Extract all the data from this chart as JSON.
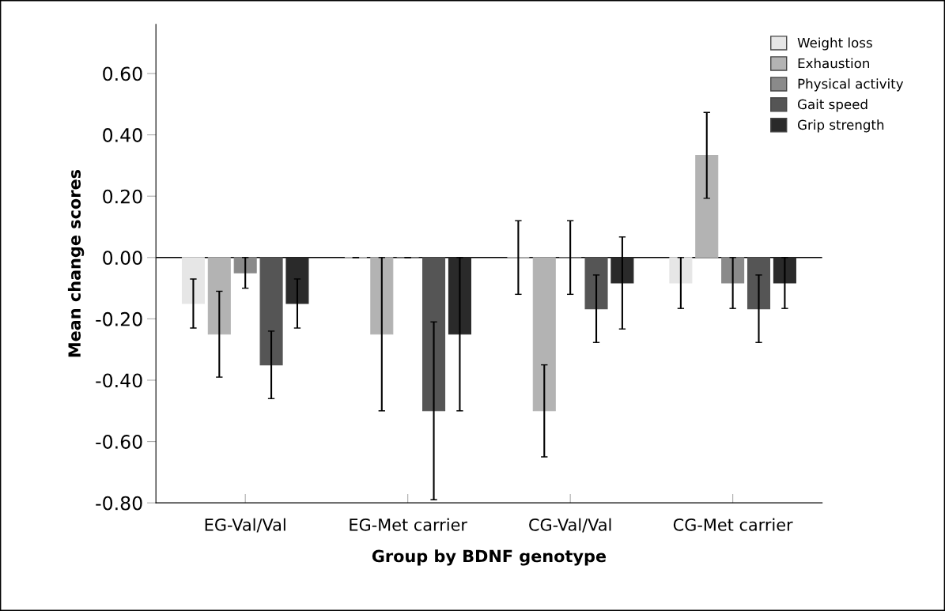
{
  "chart_data": {
    "type": "bar",
    "xlabel": "Group by BDNF genotype",
    "ylabel": "Mean change scores",
    "categories": [
      "EG-Val/Val",
      "EG-Met carrier",
      "CG-Val/Val",
      "CG-Met carrier"
    ],
    "series": [
      {
        "name": "Weight loss",
        "color": "#e6e6e6",
        "values": [
          -0.15,
          0.0,
          0.0,
          -0.083
        ],
        "errors": [
          0.08,
          null,
          0.12,
          0.083
        ]
      },
      {
        "name": "Exhaustion",
        "color": "#b3b3b3",
        "values": [
          -0.25,
          -0.25,
          -0.5,
          0.333
        ],
        "errors": [
          0.14,
          0.25,
          0.15,
          0.14
        ]
      },
      {
        "name": "Physical activity",
        "color": "#8a8a8a",
        "values": [
          -0.05,
          0.0,
          0.0,
          -0.083
        ],
        "errors": [
          0.05,
          null,
          0.12,
          0.083
        ]
      },
      {
        "name": "Gait speed",
        "color": "#555555",
        "values": [
          -0.35,
          -0.5,
          -0.167,
          -0.167
        ],
        "errors": [
          0.11,
          0.29,
          0.11,
          0.11
        ]
      },
      {
        "name": "Grip strength",
        "color": "#2a2a2a",
        "values": [
          -0.15,
          -0.25,
          -0.083,
          -0.083
        ],
        "errors": [
          0.08,
          0.25,
          0.15,
          0.083
        ]
      }
    ],
    "ylim": [
      -0.8,
      0.76
    ],
    "yticks": [
      {
        "value": -0.8,
        "label": "-0.80"
      },
      {
        "value": -0.6,
        "label": "-0.60"
      },
      {
        "value": -0.4,
        "label": "-0.40"
      },
      {
        "value": -0.2,
        "label": "-0.20"
      },
      {
        "value": 0.0,
        "label": "0.00"
      },
      {
        "value": 0.2,
        "label": "0.20"
      },
      {
        "value": 0.4,
        "label": "0.40"
      },
      {
        "value": 0.6,
        "label": "0.60"
      }
    ],
    "ref_lines": [
      {
        "axis": "y",
        "value": 0,
        "color": "#000000"
      }
    ],
    "legend": "top right",
    "grid": false
  }
}
